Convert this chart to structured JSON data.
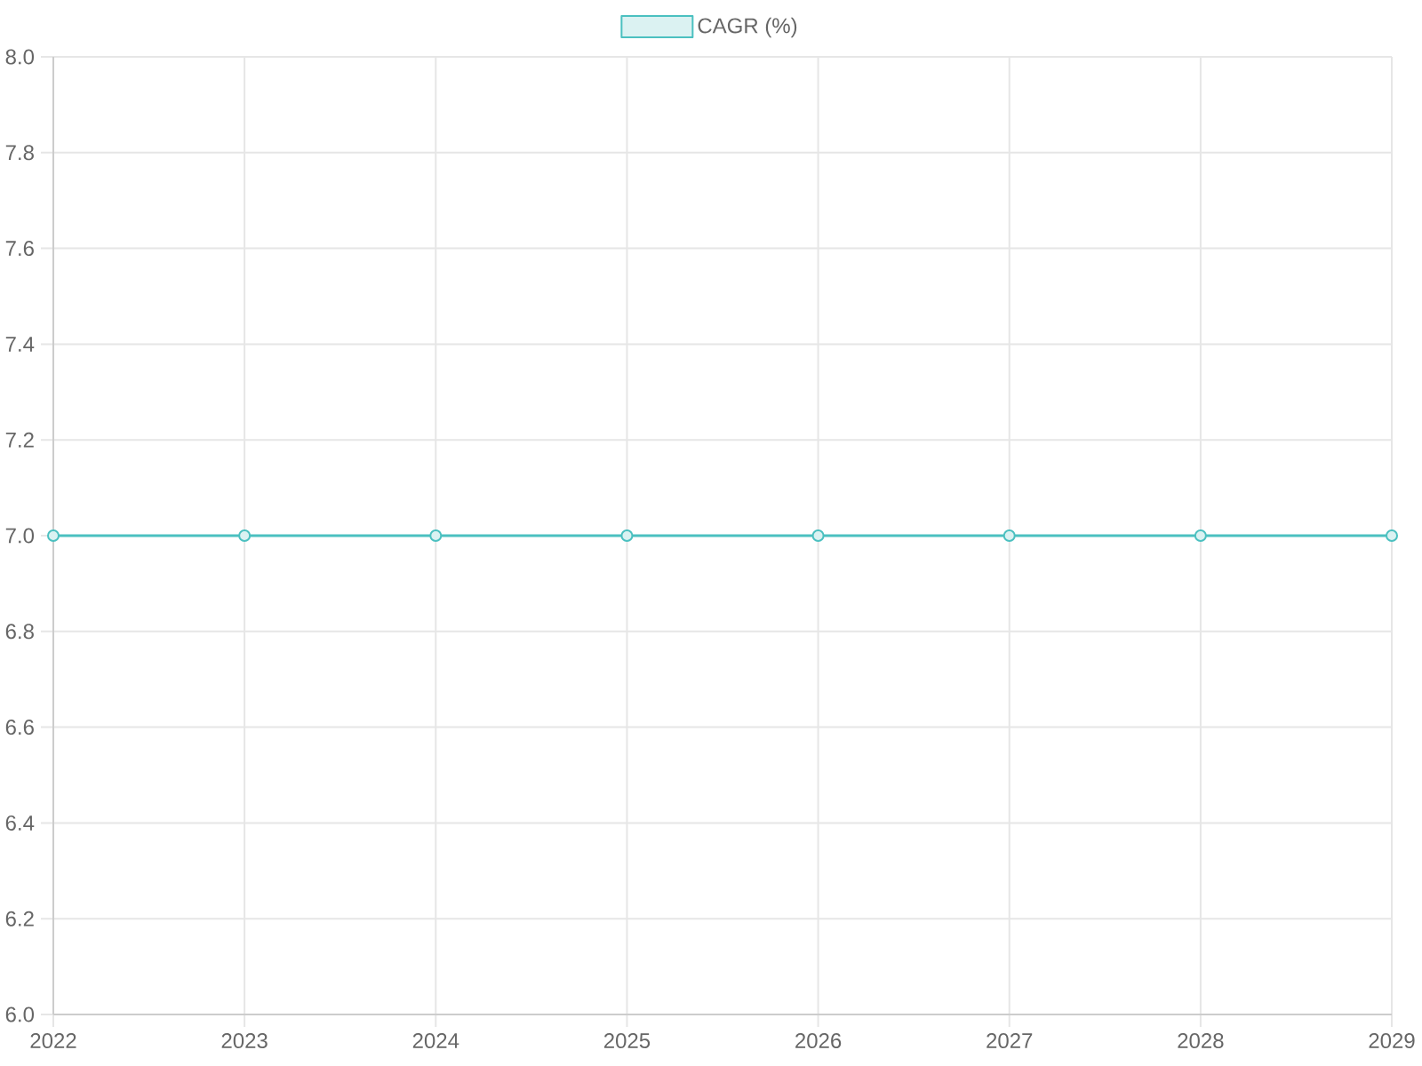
{
  "chart_data": {
    "type": "line",
    "categories": [
      "2022",
      "2023",
      "2024",
      "2025",
      "2026",
      "2027",
      "2028",
      "2029"
    ],
    "series": [
      {
        "name": "CAGR (%)",
        "color": "#4bc0c0",
        "values": [
          7.0,
          7.0,
          7.0,
          7.0,
          7.0,
          7.0,
          7.0,
          7.0
        ]
      }
    ],
    "ylim": [
      6.0,
      8.0
    ],
    "yticks": [
      {
        "value": 6.0,
        "label": "6.0"
      },
      {
        "value": 6.2,
        "label": "6.2"
      },
      {
        "value": 6.4,
        "label": "6.4"
      },
      {
        "value": 6.6,
        "label": "6.6"
      },
      {
        "value": 6.8,
        "label": "6.8"
      },
      {
        "value": 7.0,
        "label": "7.0"
      },
      {
        "value": 7.2,
        "label": "7.2"
      },
      {
        "value": 7.4,
        "label": "7.4"
      },
      {
        "value": 7.6,
        "label": "7.6"
      },
      {
        "value": 7.8,
        "label": "7.8"
      },
      {
        "value": 8.0,
        "label": "8.0"
      }
    ],
    "grid": true,
    "legend": "top",
    "marker": "circle",
    "line_style": "solid"
  }
}
